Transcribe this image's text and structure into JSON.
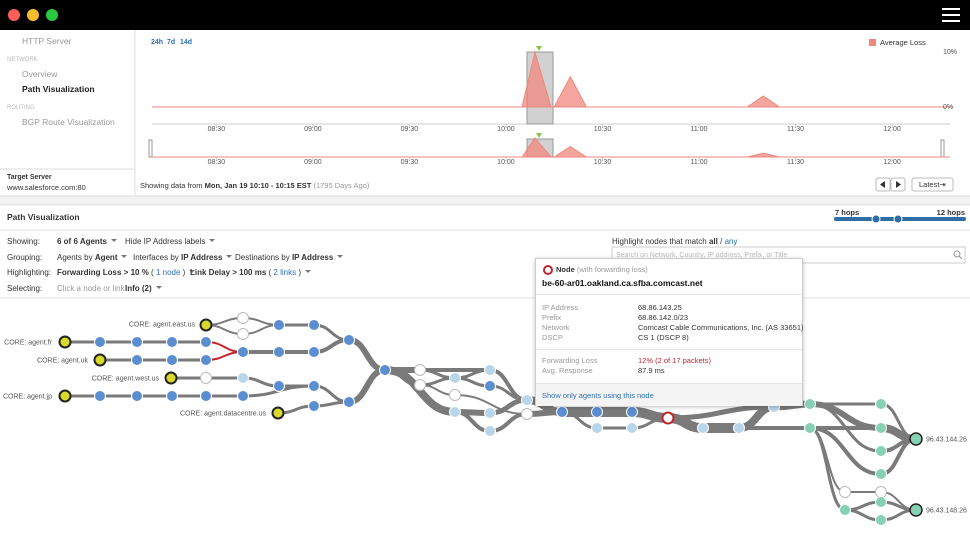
{
  "nav": {
    "http_server": "HTTP Server",
    "network": "NETWORK",
    "overview": "Overview",
    "path_visualization": "Path Visualization",
    "routing": "ROUTING",
    "bgp": "BGP Route Visualization",
    "target_label": "Target Server",
    "target": "www.salesforce.com:80"
  },
  "chart_data": {
    "type": "area",
    "ranges": [
      "24h",
      "7d",
      "14d"
    ],
    "series": [
      {
        "name": "Average Loss",
        "color": "#f0877c",
        "x": [
          "08:10",
          "10:05",
          "10:09",
          "10:14",
          "10:15",
          "10:20",
          "10:25",
          "11:15",
          "11:20",
          "11:25",
          "12:18"
        ],
        "values": [
          0,
          0,
          10,
          0,
          0,
          5.5,
          0,
          0,
          2,
          0,
          0
        ]
      }
    ],
    "xlim": [
      "08:10",
      "12:18"
    ],
    "xticks": [
      "08:30",
      "09:00",
      "09:30",
      "10:00",
      "10:30",
      "11:00",
      "11:30",
      "12:00"
    ],
    "ylim": [
      0,
      10
    ],
    "yticks": [
      {
        "value": 0,
        "label": "0%"
      },
      {
        "value": 10,
        "label": "10%"
      }
    ],
    "status": {
      "prefix": "Showing data from",
      "range": "Mon, Jan 19 10:10 - 10:15 EST",
      "ago": "(1795 Days Ago)"
    },
    "latest": "Latest⇥"
  },
  "path": {
    "title": "Path Visualization",
    "hops_min": "7 hops",
    "hops_max": "12 hops",
    "agents": [
      "CORE: agent.fr",
      "CORE: agent.uk",
      "CORE: agent.east.us",
      "CORE: agent.west.us",
      "CORE: agent.jp",
      "CORE: agent.datacentre.us"
    ],
    "destinations": [
      "96.43.144.26",
      "96.43.148.26"
    ]
  },
  "controls": {
    "showing": {
      "label": "Showing:",
      "agents": "6 of 6 Agents",
      "ip_labels": "Hide IP Address labels"
    },
    "grouping": {
      "label": "Grouping:",
      "agents_prefix": "Agents by",
      "agents": "Agent",
      "interfaces_prefix": "Interfaces by",
      "interfaces": "IP Address",
      "destinations_prefix": "Destinations by",
      "destinations": "IP Address"
    },
    "highlighting": {
      "label": "Highlighting:",
      "loss": "Forwarding Loss > 10 %",
      "loss_count": [
        "(",
        "1 node",
        ")"
      ],
      "delay": "Link Delay > 100 ms",
      "delay_count": [
        "(",
        "2 links",
        ")"
      ]
    },
    "selecting": {
      "label": "Selecting:",
      "hint": "Click a node or link",
      "info": "Info (2)"
    },
    "match": {
      "prefix": "Highlight nodes that match",
      "all": "all",
      "sep": "/",
      "any": "any"
    },
    "search_placeholder": "Search on Network, Country, IP address, Prefix, or Title"
  },
  "tooltip": {
    "title": "Node",
    "subtitle": "(with forwarding loss)",
    "host": "be-60-ar01.oakland.ca.sfba.comcast.net",
    "fields": [
      [
        "IP Address",
        "68.86.143.25"
      ],
      [
        "Prefix",
        "68.86.142.0/23"
      ],
      [
        "Network",
        "Comcast Cable Communications, Inc. (AS 33651)"
      ],
      [
        "DSCP",
        "CS 1 (DSCP 8)"
      ]
    ],
    "metrics": [
      [
        "Forwarding Loss",
        "12% (2 of 17 packets)"
      ],
      [
        "Avg. Response",
        "87.9 ms"
      ]
    ],
    "action": "Show only agents using this node"
  }
}
